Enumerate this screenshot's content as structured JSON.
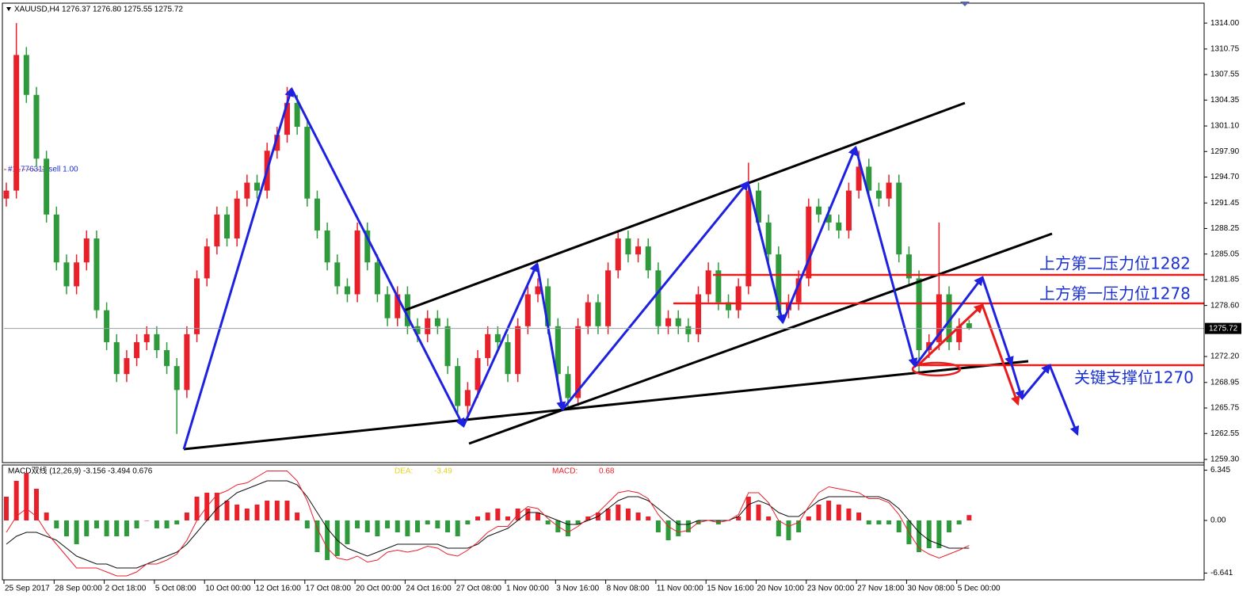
{
  "chart_data": [
    {
      "type": "candlestick",
      "title": "XAUUSD,H4  1276.37 1276.80 1275.55 1275.72",
      "order_label": "#11776311 sell 1.00",
      "categories": [
        "25 Sep 2017",
        null,
        null,
        null,
        null,
        "28 Sep 00:00",
        null,
        null,
        null,
        null,
        "2 Oct 18:00",
        null,
        null,
        null,
        null,
        "5 Oct 08:00",
        null,
        null,
        null,
        null,
        "10 Oct 00:00",
        null,
        null,
        null,
        null,
        "12 Oct 16:00",
        null,
        null,
        null,
        null,
        "17 Oct 08:00",
        null,
        null,
        null,
        null,
        "20 Oct 00:00",
        null,
        null,
        null,
        null,
        "24 Oct 16:00",
        null,
        null,
        null,
        null,
        "27 Oct 08:00",
        null,
        null,
        null,
        null,
        "1 Nov 00:00",
        null,
        null,
        null,
        null,
        "3 Nov 16:00",
        null,
        null,
        null,
        null,
        "8 Nov 08:00",
        null,
        null,
        null,
        null,
        "11 Nov 00:00",
        null,
        null,
        null,
        null,
        "15 Nov 16:00",
        null,
        null,
        null,
        null,
        "20 Nov 10:00",
        null,
        null,
        null,
        null,
        "23 Nov 00:00",
        null,
        null,
        null,
        null,
        "27 Nov 18:00",
        null,
        null,
        null,
        null,
        "30 Nov 08:00",
        null,
        null,
        null,
        null,
        "5 Dec 00:00",
        null
      ],
      "open": [
        1292,
        1293,
        1310,
        1305,
        1297,
        1290,
        1284,
        1281,
        1284,
        1287,
        1278,
        1274,
        1270,
        1272,
        1274,
        1275,
        1273,
        1271,
        1268,
        1275,
        1282,
        1286,
        1290,
        1287,
        1292,
        1294,
        1293,
        1298,
        1300,
        1304,
        1301,
        1292,
        1288,
        1284,
        1281,
        1280,
        1288,
        1284,
        1280,
        1277,
        1280,
        1276,
        1275,
        1277,
        1276,
        1271,
        1266,
        1268,
        1272,
        1275,
        1274,
        1270,
        1276,
        1280,
        1281,
        1276,
        1270,
        1267,
        1276,
        1279,
        1276,
        1283,
        1287,
        1285,
        1286,
        1283,
        1276,
        1277,
        1276,
        1275,
        1280,
        1283,
        1279,
        1278,
        1281,
        1293,
        1289,
        1285,
        1278,
        1279,
        1282,
        1291,
        1290,
        1289,
        1288,
        1293,
        1296,
        1293,
        1292,
        1294,
        1285,
        1282,
        1273,
        1274,
        1280,
        1274,
        1276.37
      ],
      "high": [
        1294,
        1314,
        1311,
        1306,
        1298,
        1291,
        1285,
        1285,
        1288,
        1288,
        1279,
        1275,
        1273,
        1275,
        1276,
        1276,
        1274,
        1272,
        1276,
        1283,
        1287,
        1291,
        1291,
        1293,
        1295,
        1295,
        1299,
        1301,
        1306,
        1305,
        1302,
        1293,
        1289,
        1285,
        1282,
        1289,
        1289,
        1285,
        1281,
        1281,
        1281,
        1277,
        1278,
        1278,
        1277,
        1272,
        1269,
        1273,
        1276,
        1276,
        1275,
        1277,
        1281,
        1282,
        1282,
        1277,
        1271,
        1277,
        1280,
        1280,
        1284,
        1288,
        1288,
        1287,
        1287,
        1284,
        1278,
        1278,
        1277,
        1281,
        1284,
        1284,
        1280,
        1282,
        1296.5,
        1294,
        1290,
        1286,
        1280,
        1283,
        1292,
        1292,
        1291,
        1290,
        1294,
        1298,
        1297,
        1294,
        1295,
        1295,
        1286,
        1283,
        1275,
        1289,
        1281,
        1277,
        1276.8
      ],
      "low": [
        1291,
        1292,
        1304,
        1296,
        1289,
        1283,
        1280,
        1280,
        1283,
        1277,
        1273,
        1269,
        1269,
        1271,
        1273,
        1272,
        1270,
        1262.5,
        1267,
        1274,
        1281,
        1285,
        1286,
        1286,
        1291,
        1292,
        1292,
        1297,
        1299,
        1300,
        1291,
        1287,
        1283,
        1280,
        1279,
        1279,
        1283,
        1279,
        1276,
        1276,
        1275,
        1274,
        1274,
        1275,
        1270,
        1265,
        1264.5,
        1267,
        1271,
        1273,
        1269,
        1269,
        1275,
        1279,
        1275,
        1269,
        1265.5,
        1266,
        1275,
        1275,
        1275,
        1282,
        1284,
        1284,
        1282,
        1275,
        1275,
        1275,
        1274,
        1274,
        1279,
        1278,
        1277,
        1277,
        1280,
        1288,
        1284,
        1277,
        1277,
        1278,
        1281,
        1289,
        1288,
        1287,
        1287,
        1292,
        1292,
        1291,
        1291,
        1284,
        1281,
        1270,
        1272,
        1273,
        1273,
        1273,
        1275.55
      ],
      "close": [
        1293,
        1310,
        1305,
        1297,
        1290,
        1284,
        1281,
        1284,
        1287,
        1278,
        1274,
        1270,
        1272,
        1274,
        1275,
        1273,
        1271,
        1268,
        1275,
        1282,
        1286,
        1290,
        1287,
        1292,
        1294,
        1293,
        1298,
        1300,
        1304,
        1301,
        1292,
        1288,
        1284,
        1281,
        1280,
        1288,
        1284,
        1280,
        1277,
        1280,
        1276,
        1275,
        1277,
        1276,
        1271,
        1266,
        1268,
        1272,
        1275,
        1274,
        1270,
        1276,
        1280,
        1281,
        1276,
        1270,
        1267,
        1276,
        1279,
        1276,
        1283,
        1287,
        1285,
        1286,
        1283,
        1276,
        1277,
        1276,
        1275,
        1280,
        1283,
        1279,
        1278,
        1281,
        1293,
        1289,
        1285,
        1278,
        1279,
        1282,
        1291,
        1290,
        1289,
        1288,
        1293,
        1296,
        1293,
        1292,
        1294,
        1285,
        1282,
        1273,
        1274,
        1280,
        1274,
        1276,
        1275.72
      ],
      "up_color": "#e8202a",
      "down_color": "#2e9a3c",
      "ylim": [
        1259.0,
        1315.9
      ],
      "yticks": [
        {
          "value": 1314,
          "label": "1314.00"
        },
        1310.75,
        1307.55,
        1304.35,
        {
          "value": 1301.1,
          "label": "1301.10"
        },
        {
          "value": 1297.9,
          "label": "1297.90"
        },
        {
          "value": 1294.7,
          "label": "1294.70"
        },
        1291.45,
        1288.25,
        1285.05,
        1281.85,
        {
          "value": 1278.6,
          "label": "1278.60"
        },
        {
          "value": 1272.2,
          "label": "1272.20"
        },
        1268.95,
        1265.75,
        1262.55,
        {
          "value": 1259.3,
          "label": "1259.30"
        }
      ],
      "annotations": [
        "上方第二压力位1282",
        "上方第一压力位1278",
        "关键支撑位1270"
      ]
    },
    {
      "type": "macd",
      "title": "MACD双线 (12,26,9) -3.156 -3.494 0.676",
      "dea_label": "DEA:",
      "dea_value": -3.49,
      "macd_label": "MACD:",
      "macd_value": 0.68,
      "histogram": {
        "up_color": "#e8202a",
        "down_color": "#2e9a3c",
        "values": [
          3,
          5,
          6,
          4,
          1,
          -1,
          -2,
          -3,
          -2,
          -1,
          -2,
          -2,
          -2,
          -1,
          0,
          -1,
          -1,
          -0.5,
          1,
          3,
          3.5,
          3.5,
          2.5,
          2,
          1.5,
          2,
          2.5,
          2.5,
          2.5,
          1,
          -1,
          -4,
          -5,
          -4.5,
          -3,
          -1,
          -1.5,
          -2,
          -1,
          -1.5,
          -2,
          -1.5,
          -0.5,
          -1,
          -1.5,
          -2,
          -0.5,
          0.5,
          1,
          1.5,
          0.5,
          1.5,
          1.5,
          1,
          -0.5,
          -1.5,
          -2,
          -0.5,
          0.5,
          1,
          1.5,
          2,
          1.5,
          1,
          0.5,
          -1.5,
          -2.5,
          -2,
          -1.5,
          -0.5,
          0,
          -0.5,
          0,
          0.5,
          3,
          2,
          0.5,
          -2,
          -2.5,
          -1.5,
          0.5,
          2,
          2.5,
          2,
          1.5,
          1,
          -0.5,
          -0.5,
          -0.5,
          -1.5,
          -3,
          -4,
          -3.5,
          -3.5,
          -1.5,
          -0.5,
          0.676
        ]
      },
      "dif": {
        "color": "#e8202a",
        "values": [
          -1.5,
          0.5,
          1.5,
          0.5,
          -1.5,
          -3,
          -4.5,
          -6,
          -6,
          -6,
          -6.5,
          -7,
          -7,
          -6.5,
          -5.5,
          -5.5,
          -5,
          -4.25,
          -2.5,
          0,
          1.75,
          3.25,
          3.75,
          4.5,
          4.75,
          5.5,
          6.25,
          6.25,
          6.25,
          5,
          2.5,
          -1,
          -3.5,
          -4.75,
          -5,
          -4.5,
          -5.25,
          -5,
          -4,
          -3.75,
          -4,
          -3.75,
          -3.25,
          -3.5,
          -4.25,
          -4.5,
          -3.75,
          -2.75,
          -1.5,
          -0.75,
          -0.75,
          0.75,
          1.75,
          1.5,
          0.25,
          -0.75,
          -1.5,
          -0.75,
          0.25,
          1,
          2.25,
          3.5,
          3.75,
          3.5,
          2.75,
          0.75,
          -0.75,
          -1.5,
          -1.25,
          -0.25,
          0,
          -0.25,
          0,
          0.75,
          3.5,
          3.5,
          2.25,
          0,
          -0.75,
          -0.25,
          1.75,
          3.5,
          4.25,
          4,
          3.75,
          3.5,
          2.75,
          2.75,
          2.25,
          0.75,
          -1.5,
          -3.5,
          -4.25,
          -4.75,
          -4.25,
          -3.75,
          -3.156
        ]
      },
      "dea": {
        "color": "#111111",
        "values": [
          -3,
          -2,
          -1.5,
          -1.5,
          -2,
          -2.5,
          -3.5,
          -4.5,
          -5,
          -5.5,
          -5.5,
          -6,
          -6,
          -6,
          -5.5,
          -5,
          -4.5,
          -4,
          -3,
          -1.5,
          0,
          1.5,
          2.5,
          3.5,
          4,
          4.5,
          5,
          5,
          5,
          4.5,
          3,
          1,
          -1,
          -2.5,
          -3.5,
          -4,
          -4.5,
          -4,
          -3.5,
          -3,
          -3,
          -3,
          -3,
          -3,
          -3.5,
          -3.5,
          -3.5,
          -3,
          -2,
          -1.5,
          -1,
          0,
          1,
          1,
          0.5,
          0,
          -0.5,
          -0.5,
          0,
          0.5,
          1.5,
          2.5,
          3,
          3,
          2.5,
          1.5,
          0.5,
          -0.5,
          -0.5,
          0,
          0,
          0,
          0,
          0.5,
          2,
          2.5,
          2,
          1,
          0.5,
          0.5,
          1.5,
          2.5,
          3,
          3,
          3,
          3,
          3,
          3,
          2.5,
          1.5,
          0,
          -1.5,
          -2.5,
          -3,
          -3.5,
          -3.5,
          -3.494
        ]
      },
      "ylim": [
        -7.3,
        7.0
      ],
      "yticks": [
        6.345,
        {
          "value": 0,
          "label": "0.00"
        },
        -6.641
      ]
    }
  ]
}
